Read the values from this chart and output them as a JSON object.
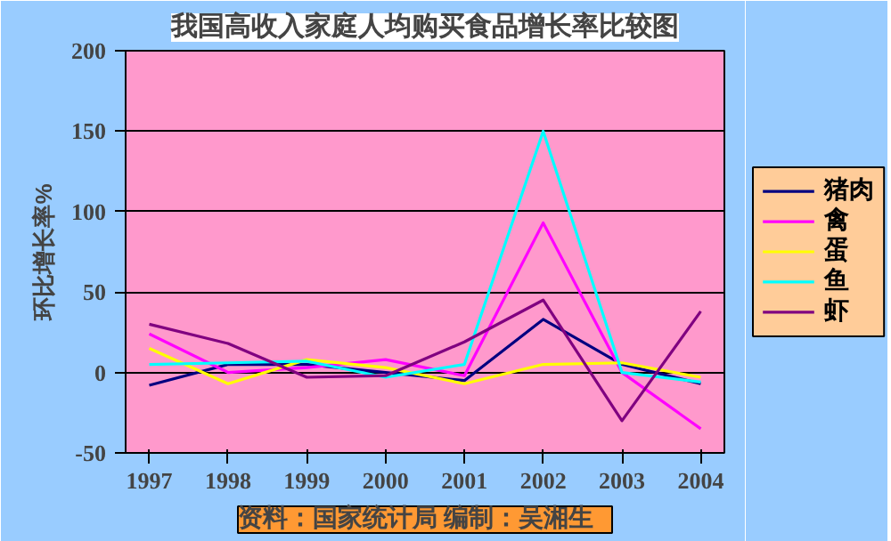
{
  "chart_data": {
    "type": "line",
    "title": "我国高收入家庭人均购买食品增长率比较图",
    "ylabel": "环比增长率%",
    "annotations": [
      "资料：国家统计局    编制：吴湘生"
    ],
    "categories": [
      "1997",
      "1998",
      "1999",
      "2000",
      "2001",
      "2002",
      "2003",
      "2004"
    ],
    "series": [
      {
        "name": "猪肉",
        "color": "#000080",
        "values": [
          -8,
          5,
          5,
          0,
          -5,
          33,
          5,
          -7
        ]
      },
      {
        "name": "禽",
        "color": "#ff00ff",
        "values": [
          24,
          0,
          3,
          8,
          -2,
          93,
          0,
          -35
        ]
      },
      {
        "name": "蛋",
        "color": "#ffff00",
        "values": [
          15,
          -7,
          8,
          3,
          -7,
          5,
          6,
          -3
        ]
      },
      {
        "name": "鱼",
        "color": "#00ffff",
        "values": [
          5,
          6,
          7,
          -3,
          5,
          150,
          0,
          -6
        ]
      },
      {
        "name": "虾",
        "color": "#800080",
        "values": [
          30,
          18,
          -3,
          -2,
          19,
          45,
          -30,
          38
        ]
      }
    ],
    "ylim": [
      -50,
      200
    ],
    "yticks": [
      -50,
      0,
      50,
      100,
      150,
      200
    ],
    "grid": "y",
    "legend": "right",
    "marker": "none",
    "line_style": "solid"
  }
}
